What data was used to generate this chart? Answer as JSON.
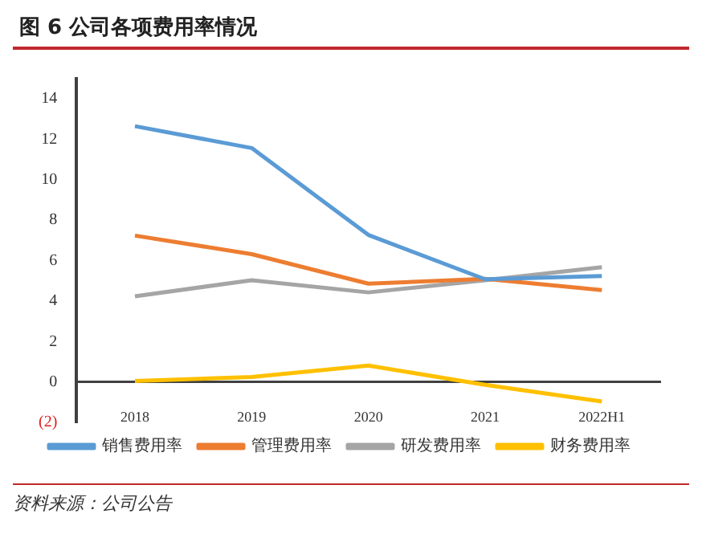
{
  "chart_data": {
    "type": "line",
    "title": "图 6  公司各项费用率情况",
    "categories": [
      "2018",
      "2019",
      "2020",
      "2021",
      "2022H1"
    ],
    "series": [
      {
        "name": "销售费用率",
        "color": "#5b9bd5",
        "values": [
          12.65,
          11.57,
          7.27,
          5.08,
          5.24
        ]
      },
      {
        "name": "管理费用率",
        "color": "#ed7d31",
        "values": [
          7.24,
          6.32,
          4.86,
          5.1,
          4.54
        ]
      },
      {
        "name": "研发费用率",
        "color": "#a5a5a5",
        "values": [
          4.24,
          5.03,
          4.43,
          5.03,
          5.68
        ]
      },
      {
        "name": "财务费用率",
        "color": "#ffc000",
        "values": [
          0.05,
          0.24,
          0.81,
          -0.14,
          -0.97
        ]
      }
    ],
    "ylim": [
      -2,
      15
    ],
    "yticks": [
      {
        "value": -2,
        "label": "(2)"
      },
      0,
      2,
      4,
      6,
      8,
      10,
      12,
      14
    ],
    "grid": false,
    "legend": "bottom",
    "marker": "none",
    "line_style": "solid",
    "annotations": [
      "资料来源：公司公告"
    ]
  }
}
